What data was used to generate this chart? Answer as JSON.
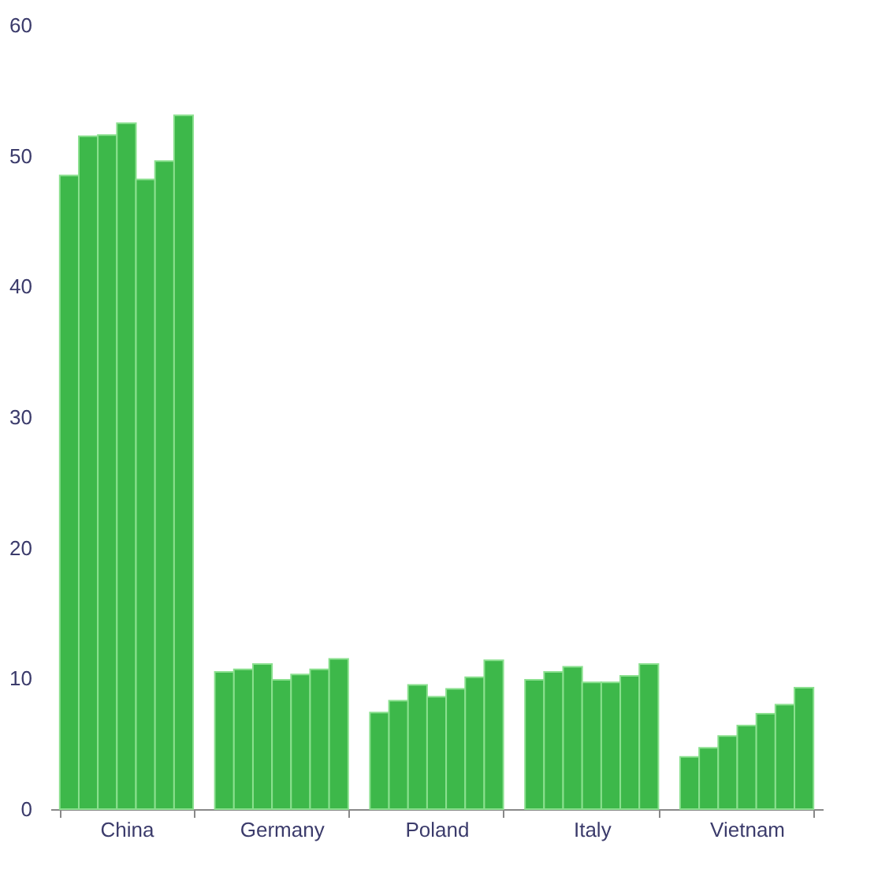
{
  "chart_data": {
    "type": "bar",
    "categories": [
      "China",
      "Germany",
      "Poland",
      "Italy",
      "Vietnam"
    ],
    "series": [
      {
        "color": "#3db84a",
        "values": [
          48.5,
          10.5,
          7.4,
          9.9,
          4.0
        ]
      },
      {
        "color": "#3db84a",
        "values": [
          51.5,
          10.7,
          8.3,
          10.5,
          4.7
        ]
      },
      {
        "color": "#3db84a",
        "values": [
          51.6,
          11.1,
          9.5,
          10.9,
          5.6
        ]
      },
      {
        "color": "#3db84a",
        "values": [
          52.5,
          9.9,
          8.6,
          9.7,
          6.4
        ]
      },
      {
        "color": "#3db84a",
        "values": [
          48.2,
          10.3,
          9.2,
          9.7,
          7.3
        ]
      },
      {
        "color": "#3db84a",
        "values": [
          49.6,
          10.7,
          10.1,
          10.2,
          8.0
        ]
      },
      {
        "color": "#3db84a",
        "values": [
          53.1,
          11.5,
          11.4,
          11.1,
          9.3
        ]
      }
    ],
    "ylim": [
      0,
      60
    ],
    "yticks": [
      0,
      10,
      20,
      30,
      40,
      50,
      60
    ],
    "grid": false,
    "legend": false
  }
}
